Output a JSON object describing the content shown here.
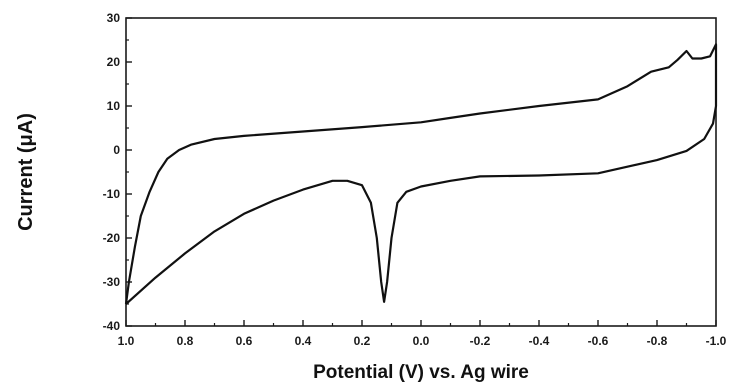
{
  "chart_data": {
    "type": "line",
    "title": "",
    "xlabel": "Potential (V) vs. Ag wire",
    "ylabel": "Current (μA)",
    "xlim": [
      1.0,
      -1.0
    ],
    "ylim": [
      -40,
      30
    ],
    "x_reversed": true,
    "xticks": [
      1.0,
      0.8,
      0.6,
      0.4,
      0.2,
      0.0,
      -0.2,
      -0.4,
      -0.6,
      -0.8,
      -1.0
    ],
    "xtick_labels": [
      "1.0",
      "0.8",
      "0.6",
      "0.4",
      "0.2",
      "0.0",
      "-0.2",
      "-0.4",
      "-0.6",
      "-0.8",
      "-1.0"
    ],
    "yticks": [
      -40,
      -30,
      -20,
      -10,
      0,
      10,
      20,
      30
    ],
    "ytick_labels": [
      "-40",
      "-30",
      "-20",
      "-10",
      "0",
      "10",
      "20",
      "30"
    ],
    "grid": false,
    "legend": "none",
    "series": [
      {
        "color": "#111111",
        "points": [
          [
            1.0,
            -35
          ],
          [
            0.99,
            -30
          ],
          [
            0.97,
            -22
          ],
          [
            0.95,
            -15
          ],
          [
            0.92,
            -9.5
          ],
          [
            0.89,
            -5
          ],
          [
            0.86,
            -2
          ],
          [
            0.82,
            0
          ],
          [
            0.78,
            1.2
          ],
          [
            0.7,
            2.5
          ],
          [
            0.6,
            3.2
          ],
          [
            0.4,
            4.2
          ],
          [
            0.2,
            5.2
          ],
          [
            0.0,
            6.3
          ],
          [
            -0.1,
            7.3
          ],
          [
            -0.2,
            8.3
          ],
          [
            -0.4,
            10
          ],
          [
            -0.6,
            11.5
          ],
          [
            -0.7,
            14.5
          ],
          [
            -0.78,
            17.8
          ],
          [
            -0.84,
            18.8
          ],
          [
            -0.87,
            20.5
          ],
          [
            -0.9,
            22.5
          ],
          [
            -0.92,
            20.8
          ],
          [
            -0.95,
            20.8
          ],
          [
            -0.98,
            21.3
          ],
          [
            -1.0,
            24
          ],
          [
            -1.0,
            10
          ],
          [
            -0.99,
            6
          ],
          [
            -0.96,
            2.5
          ],
          [
            -0.9,
            -0.2
          ],
          [
            -0.8,
            -2.3
          ],
          [
            -0.6,
            -5.3
          ],
          [
            -0.4,
            -5.8
          ],
          [
            -0.2,
            -6
          ],
          [
            -0.1,
            -7
          ],
          [
            0.0,
            -8.3
          ],
          [
            0.05,
            -9.5
          ],
          [
            0.08,
            -12
          ],
          [
            0.1,
            -20
          ],
          [
            0.115,
            -30
          ],
          [
            0.125,
            -34.5
          ],
          [
            0.135,
            -30
          ],
          [
            0.15,
            -20
          ],
          [
            0.17,
            -12
          ],
          [
            0.2,
            -8
          ],
          [
            0.25,
            -7
          ],
          [
            0.3,
            -7
          ],
          [
            0.4,
            -9
          ],
          [
            0.5,
            -11.5
          ],
          [
            0.6,
            -14.5
          ],
          [
            0.7,
            -18.5
          ],
          [
            0.8,
            -23.5
          ],
          [
            0.9,
            -29
          ],
          [
            1.0,
            -35
          ]
        ]
      }
    ]
  }
}
